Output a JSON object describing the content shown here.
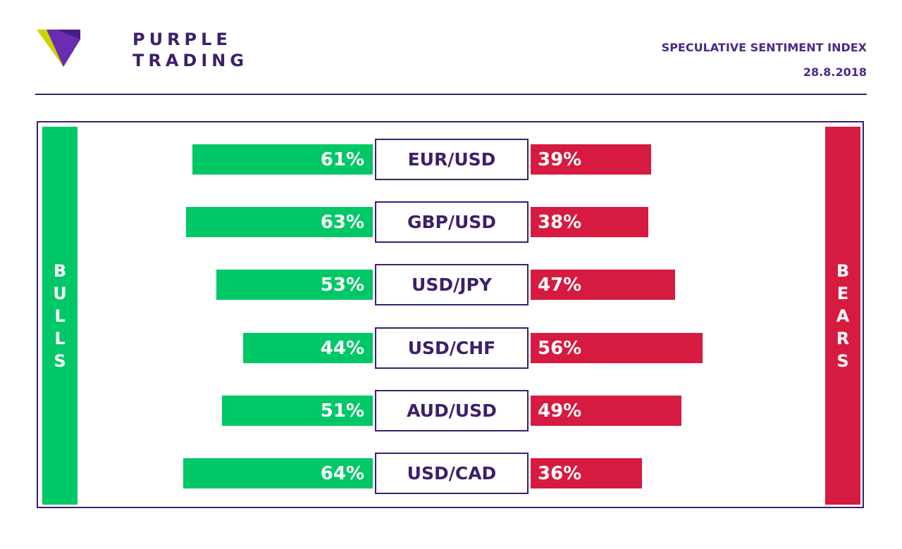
{
  "brand": {
    "line1": "PURPLE",
    "line2": "TRADING"
  },
  "header": {
    "title": "SPECULATIVE SENTIMENT INDEX",
    "date": "28.8.2018"
  },
  "labels": {
    "bulls": "BULLS",
    "bears": "BEARS"
  },
  "colors": {
    "bulls": "#00c866",
    "bears": "#d71a40",
    "brand": "#3d1f6b"
  },
  "chart_data": {
    "type": "bar",
    "categories": [
      "EUR/USD",
      "GBP/USD",
      "USD/JPY",
      "USD/CHF",
      "AUD/USD",
      "USD/CAD"
    ],
    "series": [
      {
        "name": "BULLS",
        "values": [
          61,
          63,
          53,
          44,
          51,
          64
        ]
      },
      {
        "name": "BEARS",
        "values": [
          39,
          38,
          47,
          56,
          49,
          36
        ]
      }
    ],
    "value_suffix": "%"
  }
}
